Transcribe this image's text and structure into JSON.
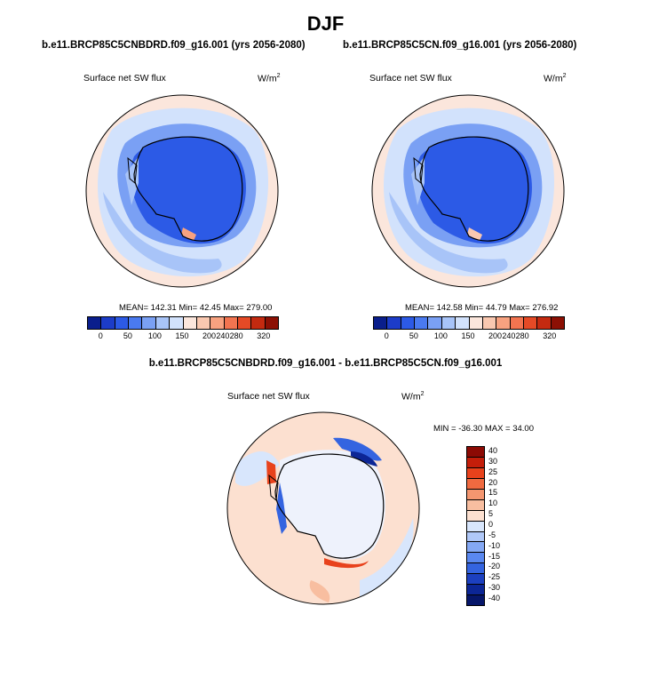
{
  "title": "DJF",
  "panels": [
    {
      "case_title": "b.e11.BRCP85C5CNBDRD.f09_g16.001 (yrs 2056-2080)",
      "variable": "Surface net SW flux",
      "units": "W/m",
      "units_sup": "2",
      "stats": "MEAN= 142.31  Min=  42.45  Max= 279.00"
    },
    {
      "case_title": "b.e11.BRCP85C5CN.f09_g16.001 (yrs 2056-2080)",
      "variable": "Surface net SW flux",
      "units": "W/m",
      "units_sup": "2",
      "stats": "MEAN= 142.58  Min=  44.79  Max= 276.92"
    }
  ],
  "diff_panel": {
    "title": "b.e11.BRCP85C5CNBDRD.f09_g16.001 - b.e11.BRCP85C5CN.f09_g16.001",
    "variable": "Surface net SW flux",
    "units": "W/m",
    "units_sup": "2",
    "stats": "MIN = -36.30 MAX =  34.00"
  },
  "colorbar_main": {
    "colors": [
      "#0a1e8c",
      "#1c3cc8",
      "#2c5ae6",
      "#4a7af0",
      "#7aa0f4",
      "#a8c4f8",
      "#d2e2fc",
      "#fbe6dc",
      "#f9c8b0",
      "#f7a280",
      "#f27450",
      "#e54a26",
      "#c42a10",
      "#8c1004"
    ],
    "ticks": [
      "0",
      "50",
      "100",
      "150",
      "200",
      "240",
      "280",
      "320"
    ]
  },
  "colorbar_diff": {
    "colors": [
      "#8c0a04",
      "#c41e0a",
      "#e8421c",
      "#f06a40",
      "#f49670",
      "#f8bea0",
      "#fce0d0",
      "#d8e6fc",
      "#b0c8f8",
      "#84a8f4",
      "#5a88f0",
      "#3464e0",
      "#1c40c0",
      "#0c2696",
      "#06166a"
    ],
    "ticks": [
      "40",
      "30",
      "25",
      "20",
      "15",
      "10",
      "5",
      "0",
      "-5",
      "-10",
      "-15",
      "-20",
      "-25",
      "-30",
      "-40"
    ]
  }
}
